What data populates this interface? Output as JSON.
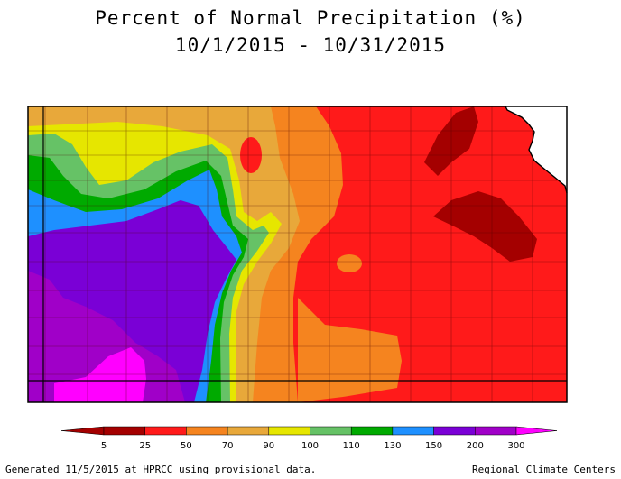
{
  "title": {
    "line1": "Percent of Normal Precipitation (%)",
    "line2": "10/1/2015 - 10/31/2015"
  },
  "legend": {
    "ticks": [
      "5",
      "25",
      "50",
      "70",
      "90",
      "100",
      "110",
      "130",
      "150",
      "200",
      "300"
    ],
    "colors": [
      "#a40000",
      "#ff1a1a",
      "#f5841f",
      "#e8a83a",
      "#e6e600",
      "#66c266",
      "#00aa00",
      "#1e90ff",
      "#7a00d6",
      "#a000c8"
    ],
    "low_color": "#a40000",
    "high_color": "#ff00ff"
  },
  "palette": {
    "dark_red": "#a40000",
    "red": "#ff1a1a",
    "orange": "#f5841f",
    "light_orange": "#e8a83a",
    "yellow": "#e6e600",
    "light_green": "#66c266",
    "green": "#00aa00",
    "blue": "#1e90ff",
    "purple": "#7a00d6",
    "violet": "#a000c8",
    "magenta": "#ff00ff"
  },
  "footer": {
    "left": "Generated 11/5/2015 at HPRCC using provisional data.",
    "right": "Regional Climate Centers"
  }
}
